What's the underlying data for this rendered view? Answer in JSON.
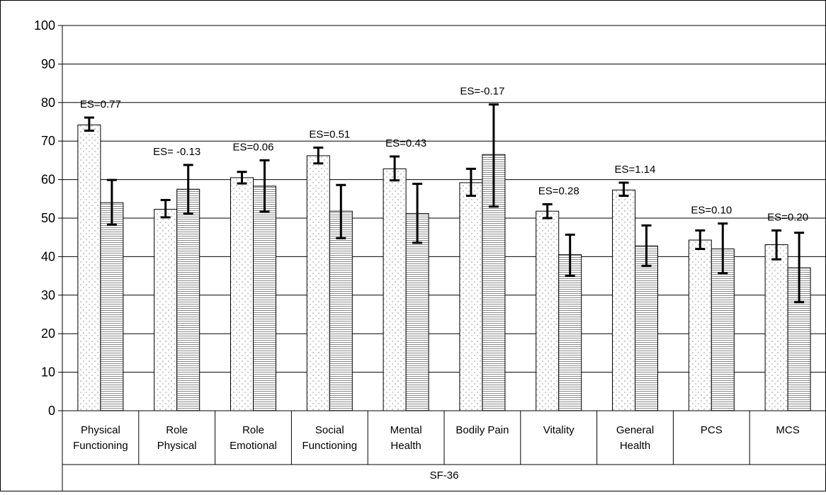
{
  "chart_data": {
    "type": "bar",
    "title": "",
    "xlabel": "SF-36",
    "ylabel": "",
    "ylim": [
      0,
      100
    ],
    "yticks": [
      0,
      10,
      20,
      30,
      40,
      50,
      60,
      70,
      80,
      90,
      100
    ],
    "grid": true,
    "categories": [
      [
        "Physical",
        "Functioning"
      ],
      [
        "Role",
        "Physical"
      ],
      [
        "Role",
        "Emotional"
      ],
      [
        "Social",
        "Functioning"
      ],
      [
        "Mental",
        "Health"
      ],
      [
        "Bodily Pain"
      ],
      [
        "Vitality"
      ],
      [
        "General",
        "Health"
      ],
      [
        "PCS"
      ],
      [
        "MCS"
      ]
    ],
    "series": [
      {
        "pattern": "dots",
        "values": [
          74.2,
          52.3,
          60.5,
          66.2,
          62.8,
          59.2,
          51.8,
          57.3,
          44.3,
          43.1
        ],
        "err_low": [
          72.7,
          50.2,
          59.0,
          64.2,
          59.8,
          55.8,
          50.0,
          55.8,
          42.0,
          39.3
        ],
        "err_high": [
          76.1,
          54.7,
          62.0,
          68.3,
          66.0,
          62.8,
          53.6,
          59.2,
          46.8,
          46.8
        ]
      },
      {
        "pattern": "horizontal-lines",
        "values": [
          54.0,
          57.5,
          58.3,
          51.8,
          51.2,
          66.5,
          40.5,
          42.8,
          42.0,
          37.1
        ],
        "err_low": [
          48.3,
          51.2,
          51.7,
          44.8,
          43.6,
          53.0,
          35.0,
          37.6,
          35.7,
          28.2
        ],
        "err_high": [
          59.9,
          63.8,
          65.0,
          58.6,
          58.9,
          79.5,
          45.7,
          48.1,
          48.6,
          46.2
        ]
      }
    ],
    "annotations": [
      "ES=0.77",
      "ES= -0.13",
      "ES=0.06",
      "ES=0.51",
      "ES=0.43",
      "ES=-0.17",
      "ES=0.28",
      "ES=1.14",
      "ES=0.10",
      "ES=0.20"
    ],
    "colors": {
      "bar_fill": "#ffffff",
      "pattern": "#9a9a9a",
      "line": "#000000"
    }
  }
}
